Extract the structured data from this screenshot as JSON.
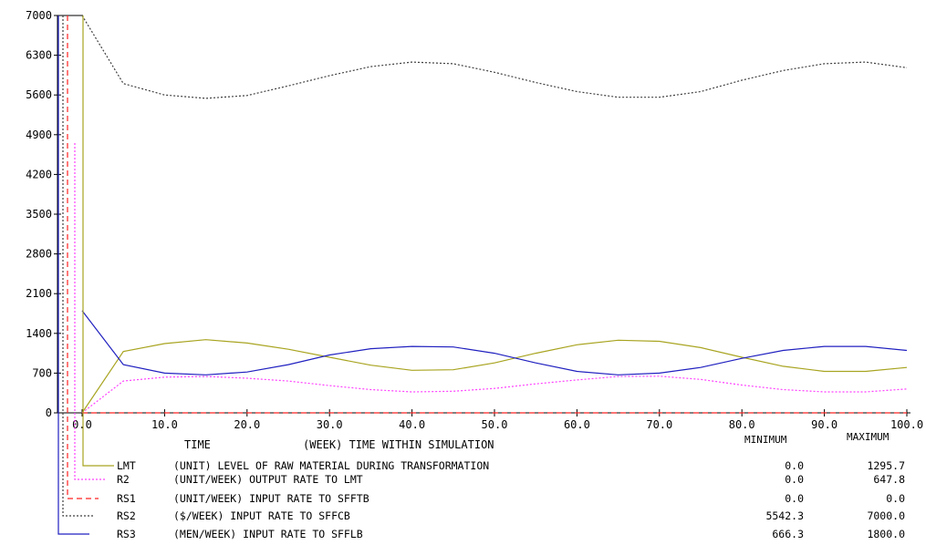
{
  "chart_data": {
    "type": "line",
    "x_axis": {
      "label_left": "TIME",
      "label_mid": "(WEEK) TIME WITHIN SIMULATION",
      "range": [
        0,
        100
      ],
      "ticks": [
        "0.0",
        "10.0",
        "20.0",
        "30.0",
        "40.0",
        "50.0",
        "60.0",
        "70.0",
        "80.0",
        "90.0",
        "100.0"
      ]
    },
    "y_axis": {
      "range": [
        0,
        7000
      ],
      "ticks": [
        "0",
        "700",
        "1400",
        "2100",
        "2800",
        "3500",
        "4200",
        "4900",
        "5600",
        "6300",
        "7000"
      ]
    },
    "stats_headers": {
      "min": "MINIMUM",
      "max": "MAXIMUM"
    },
    "series": [
      {
        "name": "LMT",
        "description": "(UNIT) LEVEL OF RAW MATERIAL DURING TRANSFORMATION",
        "min": "0.0",
        "max": "1295.7",
        "color": "#a8a420",
        "style": "solid",
        "x": [
          0,
          5,
          10,
          15,
          20,
          25,
          30,
          35,
          40,
          45,
          50,
          55,
          60,
          65,
          70,
          75,
          80,
          85,
          90,
          95,
          100
        ],
        "y": [
          0,
          1080,
          1220,
          1290,
          1230,
          1120,
          980,
          840,
          750,
          760,
          880,
          1050,
          1200,
          1280,
          1260,
          1150,
          980,
          820,
          730,
          730,
          800
        ]
      },
      {
        "name": "R2",
        "description": "(UNIT/WEEK) OUTPUT RATE TO LMT",
        "min": "0.0",
        "max": "647.8",
        "color": "#ff40ff",
        "style": "dotted",
        "x": [
          0,
          5,
          10,
          15,
          20,
          25,
          30,
          35,
          40,
          45,
          50,
          55,
          60,
          65,
          70,
          75,
          80,
          85,
          90,
          95,
          100
        ],
        "y": [
          0,
          560,
          630,
          640,
          610,
          560,
          480,
          410,
          370,
          380,
          430,
          510,
          580,
          640,
          645,
          590,
          490,
          410,
          370,
          370,
          420
        ]
      },
      {
        "name": "RS1",
        "description": "(UNIT/WEEK) INPUT RATE TO SFFTB",
        "min": "0.0",
        "max": "0.0",
        "color": "#ff2020",
        "style": "dashed",
        "x": [
          0,
          5,
          10,
          15,
          20,
          25,
          30,
          35,
          40,
          45,
          50,
          55,
          60,
          65,
          70,
          75,
          80,
          85,
          90,
          95,
          100
        ],
        "y": [
          0,
          0,
          0,
          0,
          0,
          0,
          0,
          0,
          0,
          0,
          0,
          0,
          0,
          0,
          0,
          0,
          0,
          0,
          0,
          0,
          0
        ]
      },
      {
        "name": "RS2",
        "description": "($/WEEK) INPUT RATE TO SFFCB",
        "min": "5542.3",
        "max": "7000.0",
        "color": "#404040",
        "style": "dotted",
        "x": [
          0,
          5,
          10,
          15,
          20,
          25,
          30,
          35,
          40,
          45,
          50,
          55,
          60,
          65,
          70,
          75,
          80,
          85,
          90,
          95,
          100
        ],
        "y": [
          7000,
          5800,
          5600,
          5540,
          5590,
          5760,
          5940,
          6100,
          6180,
          6150,
          6000,
          5820,
          5660,
          5560,
          5560,
          5660,
          5860,
          6030,
          6150,
          6180,
          6080
        ]
      },
      {
        "name": "RS3",
        "description": "(MEN/WEEK) INPUT RATE TO SFFLB",
        "min": "666.3",
        "max": "1800.0",
        "color": "#2020c0",
        "style": "solid",
        "x": [
          0,
          5,
          10,
          15,
          20,
          25,
          30,
          35,
          40,
          45,
          50,
          55,
          60,
          65,
          70,
          75,
          80,
          85,
          90,
          95,
          100
        ],
        "y": [
          1800,
          850,
          700,
          670,
          720,
          850,
          1020,
          1130,
          1170,
          1160,
          1050,
          880,
          730,
          670,
          700,
          800,
          960,
          1100,
          1170,
          1170,
          1100
        ]
      }
    ]
  }
}
